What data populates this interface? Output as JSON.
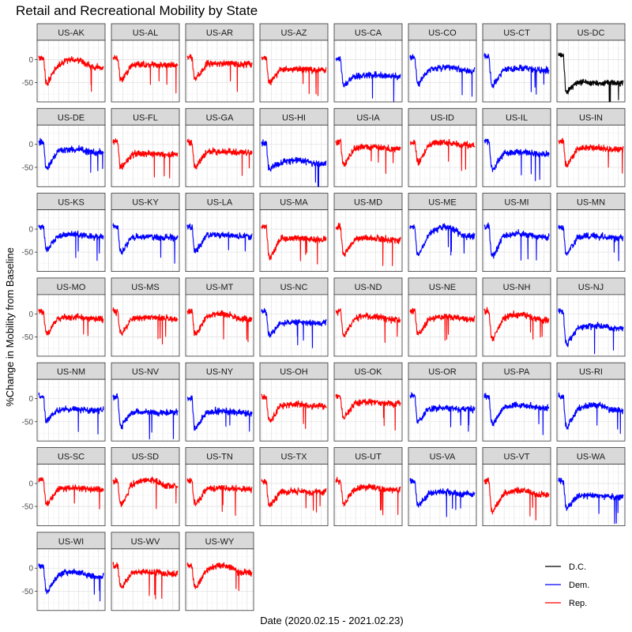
{
  "chart_data": {
    "type": "line",
    "title": "Retail and Recreational Mobility by State",
    "xlabel": "Date (2020.02.15 - 2021.02.23)",
    "ylabel": "%Change in Mobility from Baseline",
    "x_range": [
      "2020-02-15",
      "2021-02-23"
    ],
    "y_ticks": [
      0,
      -50
    ],
    "ylim": [
      -92,
      42
    ],
    "grid": true,
    "legend_placement": "bottom-right",
    "legend": [
      {
        "label": "D.C.",
        "color": "#000000"
      },
      {
        "label": "Dem.",
        "color": "#0000ff"
      },
      {
        "label": "Rep.",
        "color": "#ff0000"
      }
    ],
    "panels": [
      {
        "state": "US-AK",
        "party": "Rep.",
        "early": 5,
        "trough": -45,
        "level": -12,
        "arc": 14
      },
      {
        "state": "US-AL",
        "party": "Rep.",
        "early": 5,
        "trough": -40,
        "level": -12,
        "arc": 2
      },
      {
        "state": "US-AR",
        "party": "Rep.",
        "early": 5,
        "trough": -38,
        "level": -10,
        "arc": 2
      },
      {
        "state": "US-AZ",
        "party": "Rep.",
        "early": 3,
        "trough": -45,
        "level": -22,
        "arc": 2
      },
      {
        "state": "US-CA",
        "party": "Dem.",
        "early": 3,
        "trough": -52,
        "level": -35,
        "arc": 2
      },
      {
        "state": "US-CO",
        "party": "Dem.",
        "early": 5,
        "trough": -48,
        "level": -22,
        "arc": 6
      },
      {
        "state": "US-CT",
        "party": "Dem.",
        "early": 5,
        "trough": -52,
        "level": -22,
        "arc": 4
      },
      {
        "state": "US-DC",
        "party": "D.C.",
        "early": 10,
        "trough": -65,
        "level": -50,
        "arc": 0
      },
      {
        "state": "US-DE",
        "party": "Dem.",
        "early": 5,
        "trough": -48,
        "level": -15,
        "arc": 6
      },
      {
        "state": "US-FL",
        "party": "Rep.",
        "early": 5,
        "trough": -45,
        "level": -22,
        "arc": 2
      },
      {
        "state": "US-GA",
        "party": "Rep.",
        "early": 5,
        "trough": -45,
        "level": -18,
        "arc": 2
      },
      {
        "state": "US-HI",
        "party": "Dem.",
        "early": 3,
        "trough": -50,
        "level": -40,
        "arc": 6
      },
      {
        "state": "US-IA",
        "party": "Rep.",
        "early": 5,
        "trough": -40,
        "level": -8,
        "arc": 4
      },
      {
        "state": "US-ID",
        "party": "Rep.",
        "early": 5,
        "trough": -35,
        "level": 0,
        "arc": 5
      },
      {
        "state": "US-IL",
        "party": "Dem.",
        "early": 5,
        "trough": -50,
        "level": -20,
        "arc": 4
      },
      {
        "state": "US-IN",
        "party": "Rep.",
        "early": 5,
        "trough": -42,
        "level": -10,
        "arc": 3
      },
      {
        "state": "US-KS",
        "party": "Dem.",
        "early": 5,
        "trough": -40,
        "level": -15,
        "arc": 4
      },
      {
        "state": "US-KY",
        "party": "Dem.",
        "early": 5,
        "trough": -45,
        "level": -18,
        "arc": 2
      },
      {
        "state": "US-LA",
        "party": "Dem.",
        "early": 5,
        "trough": -45,
        "level": -15,
        "arc": 2
      },
      {
        "state": "US-MA",
        "party": "Rep.",
        "early": 5,
        "trough": -55,
        "level": -22,
        "arc": 3
      },
      {
        "state": "US-MD",
        "party": "Rep.",
        "early": 5,
        "trough": -50,
        "level": -22,
        "arc": 3
      },
      {
        "state": "US-ME",
        "party": "Dem.",
        "early": 3,
        "trough": -50,
        "level": -10,
        "arc": 18
      },
      {
        "state": "US-MI",
        "party": "Dem.",
        "early": 5,
        "trough": -55,
        "level": -15,
        "arc": 6
      },
      {
        "state": "US-MN",
        "party": "Dem.",
        "early": 5,
        "trough": -48,
        "level": -18,
        "arc": 3
      },
      {
        "state": "US-MO",
        "party": "Rep.",
        "early": 5,
        "trough": -40,
        "level": -10,
        "arc": 3
      },
      {
        "state": "US-MS",
        "party": "Rep.",
        "early": 5,
        "trough": -40,
        "level": -10,
        "arc": 2
      },
      {
        "state": "US-MT",
        "party": "Rep.",
        "early": 5,
        "trough": -40,
        "level": -8,
        "arc": 10
      },
      {
        "state": "US-NC",
        "party": "Dem.",
        "early": 5,
        "trough": -42,
        "level": -20,
        "arc": 2
      },
      {
        "state": "US-ND",
        "party": "Rep.",
        "early": 5,
        "trough": -42,
        "level": -10,
        "arc": 5
      },
      {
        "state": "US-NE",
        "party": "Rep.",
        "early": 5,
        "trough": -38,
        "level": -10,
        "arc": 4
      },
      {
        "state": "US-NH",
        "party": "Rep.",
        "early": 5,
        "trough": -50,
        "level": -10,
        "arc": 10
      },
      {
        "state": "US-NJ",
        "party": "Dem.",
        "early": 5,
        "trough": -60,
        "level": -30,
        "arc": 4
      },
      {
        "state": "US-NM",
        "party": "Dem.",
        "early": 5,
        "trough": -45,
        "level": -25,
        "arc": 2
      },
      {
        "state": "US-NV",
        "party": "Dem.",
        "early": 5,
        "trough": -55,
        "level": -30,
        "arc": 2
      },
      {
        "state": "US-NY",
        "party": "Dem.",
        "early": 3,
        "trough": -60,
        "level": -30,
        "arc": 4
      },
      {
        "state": "US-OH",
        "party": "Rep.",
        "early": 5,
        "trough": -45,
        "level": -15,
        "arc": 4
      },
      {
        "state": "US-OK",
        "party": "Rep.",
        "early": 5,
        "trough": -38,
        "level": -10,
        "arc": 2
      },
      {
        "state": "US-OR",
        "party": "Dem.",
        "early": 5,
        "trough": -45,
        "level": -22,
        "arc": 2
      },
      {
        "state": "US-PA",
        "party": "Dem.",
        "early": 5,
        "trough": -50,
        "level": -18,
        "arc": 4
      },
      {
        "state": "US-RI",
        "party": "Dem.",
        "early": 5,
        "trough": -55,
        "level": -22,
        "arc": 10
      },
      {
        "state": "US-SC",
        "party": "Rep.",
        "early": 5,
        "trough": -40,
        "level": -12,
        "arc": 2
      },
      {
        "state": "US-SD",
        "party": "Rep.",
        "early": 5,
        "trough": -40,
        "level": -2,
        "arc": 12
      },
      {
        "state": "US-TN",
        "party": "Rep.",
        "early": 5,
        "trough": -40,
        "level": -12,
        "arc": 2
      },
      {
        "state": "US-TX",
        "party": "Rep.",
        "early": 5,
        "trough": -45,
        "level": -18,
        "arc": 2
      },
      {
        "state": "US-UT",
        "party": "Rep.",
        "early": 5,
        "trough": -40,
        "level": -12,
        "arc": 3
      },
      {
        "state": "US-VA",
        "party": "Dem.",
        "early": 5,
        "trough": -45,
        "level": -22,
        "arc": 3
      },
      {
        "state": "US-VT",
        "party": "Rep.",
        "early": 5,
        "trough": -55,
        "level": -22,
        "arc": 8
      },
      {
        "state": "US-WA",
        "party": "Dem.",
        "early": 5,
        "trough": -50,
        "level": -28,
        "arc": 2
      },
      {
        "state": "US-WI",
        "party": "Dem.",
        "early": 5,
        "trough": -48,
        "level": -15,
        "arc": 8
      },
      {
        "state": "US-WV",
        "party": "Rep.",
        "early": 5,
        "trough": -38,
        "level": -10,
        "arc": 3
      },
      {
        "state": "US-WY",
        "party": "Rep.",
        "early": 5,
        "trough": -38,
        "level": -5,
        "arc": 12
      }
    ]
  }
}
